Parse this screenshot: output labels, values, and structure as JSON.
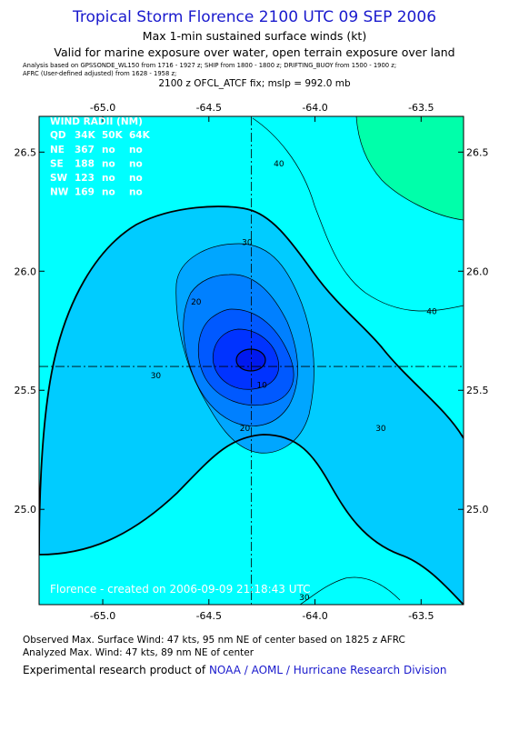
{
  "header": {
    "title": "Tropical Storm Florence 2100 UTC 09 SEP 2006",
    "subtitle1": "Max 1-min sustained surface winds (kt)",
    "subtitle2": "Valid for marine exposure over water, open terrain exposure over land",
    "analysis_line1": "Analysis based on  GPSSONDE_WL150 from 1716 - 1927 z;  SHIP from 1800 - 1800 z;  DRIFTING_BUOY from 1500 - 1900 z;",
    "analysis_line2": "AFRC (User-defined adjusted) from 1628 - 1958 z;",
    "fix_line": "2100 z OFCL_ATCF fix; mslp = 992.0 mb"
  },
  "chart_data": {
    "type": "contour",
    "xlim": [
      -65.3,
      -63.3
    ],
    "ylim": [
      24.6,
      26.65
    ],
    "x_ticks": [
      -65.0,
      -64.5,
      -64.0,
      -63.5
    ],
    "x_tick_labels": [
      "-65.0",
      "-64.5",
      "-64.0",
      "-63.5"
    ],
    "y_ticks": [
      25.0,
      25.5,
      26.0,
      26.5
    ],
    "y_tick_labels": [
      "25.0",
      "25.5",
      "26.0",
      "26.5"
    ],
    "center": {
      "lon": -64.3,
      "lat": 25.6
    },
    "contour_labels": [
      {
        "text": "40",
        "lon": -64.17,
        "lat": 26.44
      },
      {
        "text": "40",
        "lon": -63.45,
        "lat": 25.82
      },
      {
        "text": "30",
        "lon": -64.32,
        "lat": 26.11
      },
      {
        "text": "30",
        "lon": -64.75,
        "lat": 25.55
      },
      {
        "text": "30",
        "lon": -63.69,
        "lat": 25.33
      },
      {
        "text": "30",
        "lon": -64.05,
        "lat": 24.62
      },
      {
        "text": "20",
        "lon": -64.56,
        "lat": 25.86
      },
      {
        "text": "20",
        "lon": -64.33,
        "lat": 25.33
      },
      {
        "text": "10",
        "lon": -64.25,
        "lat": 25.51
      }
    ],
    "wind_radii": {
      "title": "WIND RADII (NM)",
      "header": [
        "QD",
        "34K",
        "50K",
        "64K"
      ],
      "rows": [
        [
          "NE",
          "367",
          "no",
          "no"
        ],
        [
          "SE",
          "188",
          "no",
          "no"
        ],
        [
          "SW",
          "123",
          "no",
          "no"
        ],
        [
          "NW",
          "169",
          "no",
          "no"
        ]
      ]
    },
    "creation_note": "Florence - created on 2006-09-09 21:18:43 UTC",
    "colors": {
      "fill_outer": "#00ffff",
      "fill_30": "#00ccff",
      "fill_20": "#00a6ff",
      "fill_15": "#0080ff",
      "fill_10": "#0059ff",
      "fill_5": "#0033ff",
      "fill_core": "#0019ee",
      "fill_high": "#00ffaa",
      "contour": "#000000"
    }
  },
  "footer": {
    "observed": "Observed Max. Surface Wind: 47 kts, 95 nm NE of center based on 1825 z AFRC",
    "analyzed": "Analyzed Max. Wind: 47 kts, 89 nm NE of center",
    "credit_prefix": "Experimental research product of",
    "credit_link": "NOAA / AOML / Hurricane Research Division"
  }
}
